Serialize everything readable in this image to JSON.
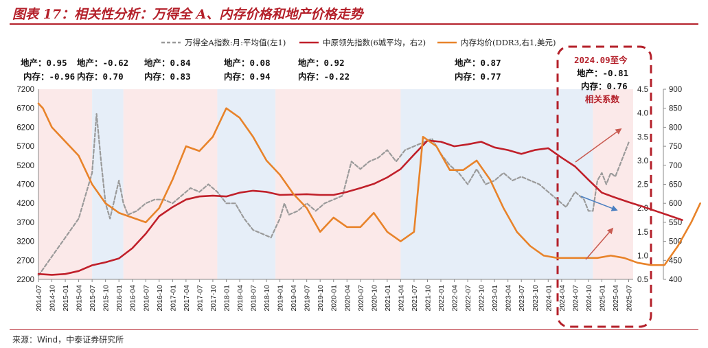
{
  "header": {
    "title": "图表 17：相关性分析：万得全 A、内存价格和地产价格走势",
    "source": "来源：Wind，中泰证券研究所"
  },
  "colors": {
    "accent": "#b4202a",
    "series_wind": "#9a9a9a",
    "series_house": "#c0202a",
    "series_ddr": "#e8832a",
    "shade_pink": "#fbe9e9",
    "shade_blue": "#e6eef8"
  },
  "stats": [
    {
      "house": "地产：0.95",
      "mem": "内存：-0.96"
    },
    {
      "house": "地产：-0.62",
      "mem": "内存：0.70"
    },
    {
      "house": "地产：0.84",
      "mem": "内存：0.83"
    },
    {
      "house": "地产：0.08",
      "mem": "内存：0.94"
    },
    {
      "house": "地产：0.92",
      "mem": "内存：-0.22"
    },
    {
      "house": "地产：0.87",
      "mem": "内存：0.77"
    }
  ],
  "highlight": {
    "period": "2024.09至今",
    "house": "地产：-0.81",
    "mem": "内存：0.76",
    "label": "相关系数"
  },
  "chart_data": {
    "type": "line",
    "x_start": "2014-07",
    "x_labels": [
      "2014-07",
      "2014-10",
      "2015-01",
      "2015-04",
      "2015-07",
      "2015-10",
      "2016-01",
      "2016-04",
      "2016-07",
      "2016-10",
      "2017-01",
      "2017-04",
      "2017-07",
      "2017-10",
      "2018-01",
      "2018-04",
      "2018-07",
      "2018-10",
      "2019-01",
      "2019-04",
      "2019-07",
      "2019-10",
      "2020-01",
      "2020-04",
      "2020-07",
      "2020-10",
      "2021-01",
      "2021-04",
      "2021-07",
      "2021-10",
      "2022-01",
      "2022-04",
      "2022-07",
      "2022-10",
      "2023-01",
      "2023-04",
      "2023-07",
      "2023-10",
      "2024-01",
      "2024-04",
      "2024-07",
      "2024-10",
      "2025-01",
      "2025-04",
      "2025-07"
    ],
    "y_left": {
      "min": 2200,
      "max": 7200,
      "ticks": [
        2200,
        2700,
        3200,
        3700,
        4200,
        4700,
        5200,
        5700,
        6200,
        6700,
        7200
      ]
    },
    "y_right1": {
      "min": 0.5,
      "max": 4.5,
      "ticks": [
        0.5,
        1.0,
        1.5,
        2.0,
        2.5,
        3.0,
        3.5,
        4.0,
        4.5
      ]
    },
    "y_right2": {
      "min": 400,
      "max": 900,
      "ticks": [
        400,
        450,
        500,
        550,
        600,
        650,
        700,
        750,
        800,
        850,
        900
      ]
    },
    "shaded_periods": [
      {
        "start": 0,
        "end": 12,
        "kind": "pink"
      },
      {
        "start": 12,
        "end": 19,
        "kind": "blue"
      },
      {
        "start": 19,
        "end": 40,
        "kind": "pink"
      },
      {
        "start": 40,
        "end": 53,
        "kind": "blue"
      },
      {
        "start": 53,
        "end": 81,
        "kind": "pink"
      },
      {
        "start": 81,
        "end": 124,
        "kind": "blue"
      },
      {
        "start": 124,
        "end": 133,
        "kind": "pink"
      }
    ],
    "series": [
      {
        "name": "万得全A指数:月:平均值(左1)",
        "axis": "left",
        "color": "#9a9a9a",
        "dash": true,
        "points": [
          [
            0,
            2300
          ],
          [
            3,
            2800
          ],
          [
            6,
            3300
          ],
          [
            9,
            3800
          ],
          [
            12,
            5000
          ],
          [
            13,
            6550
          ],
          [
            14,
            5300
          ],
          [
            15,
            4200
          ],
          [
            16,
            3800
          ],
          [
            17,
            4300
          ],
          [
            18,
            4800
          ],
          [
            19,
            4200
          ],
          [
            20,
            3900
          ],
          [
            22,
            4000
          ],
          [
            24,
            4200
          ],
          [
            26,
            4300
          ],
          [
            28,
            4300
          ],
          [
            30,
            4200
          ],
          [
            32,
            4400
          ],
          [
            34,
            4600
          ],
          [
            36,
            4500
          ],
          [
            38,
            4700
          ],
          [
            40,
            4500
          ],
          [
            42,
            4200
          ],
          [
            44,
            4200
          ],
          [
            46,
            3800
          ],
          [
            48,
            3500
          ],
          [
            50,
            3400
          ],
          [
            52,
            3300
          ],
          [
            54,
            3800
          ],
          [
            55,
            4200
          ],
          [
            56,
            3900
          ],
          [
            58,
            4000
          ],
          [
            60,
            4200
          ],
          [
            62,
            4000
          ],
          [
            64,
            4200
          ],
          [
            66,
            4300
          ],
          [
            68,
            4400
          ],
          [
            70,
            5300
          ],
          [
            72,
            5100
          ],
          [
            74,
            5300
          ],
          [
            76,
            5400
          ],
          [
            78,
            5600
          ],
          [
            80,
            5300
          ],
          [
            82,
            5600
          ],
          [
            84,
            5700
          ],
          [
            86,
            5800
          ],
          [
            88,
            5900
          ],
          [
            90,
            5500
          ],
          [
            92,
            5200
          ],
          [
            94,
            5000
          ],
          [
            96,
            4700
          ],
          [
            98,
            5100
          ],
          [
            100,
            4700
          ],
          [
            102,
            4800
          ],
          [
            104,
            5000
          ],
          [
            106,
            4800
          ],
          [
            108,
            4900
          ],
          [
            110,
            4800
          ],
          [
            112,
            4700
          ],
          [
            114,
            4500
          ],
          [
            116,
            4300
          ],
          [
            118,
            4100
          ],
          [
            120,
            4500
          ],
          [
            122,
            4300
          ],
          [
            123,
            4000
          ],
          [
            124,
            4000
          ],
          [
            125,
            4800
          ],
          [
            126,
            5000
          ],
          [
            127,
            4700
          ],
          [
            128,
            5000
          ],
          [
            129,
            4900
          ],
          [
            130,
            5200
          ],
          [
            131,
            5500
          ],
          [
            132,
            5800
          ]
        ]
      },
      {
        "name": "中原领先指数(6城平均，右2)",
        "axis": "right2",
        "color": "#c0202a",
        "dash": false,
        "points": [
          [
            0,
            414
          ],
          [
            3,
            412
          ],
          [
            6,
            414
          ],
          [
            9,
            422
          ],
          [
            12,
            437
          ],
          [
            15,
            445
          ],
          [
            18,
            455
          ],
          [
            21,
            482
          ],
          [
            24,
            520
          ],
          [
            27,
            566
          ],
          [
            30,
            590
          ],
          [
            33,
            610
          ],
          [
            36,
            618
          ],
          [
            39,
            620
          ],
          [
            42,
            618
          ],
          [
            45,
            628
          ],
          [
            48,
            633
          ],
          [
            51,
            630
          ],
          [
            54,
            622
          ],
          [
            57,
            623
          ],
          [
            60,
            624
          ],
          [
            63,
            622
          ],
          [
            66,
            622
          ],
          [
            69,
            630
          ],
          [
            72,
            640
          ],
          [
            75,
            651
          ],
          [
            78,
            668
          ],
          [
            81,
            690
          ],
          [
            84,
            728
          ],
          [
            87,
            765
          ],
          [
            90,
            762
          ],
          [
            93,
            750
          ],
          [
            96,
            755
          ],
          [
            99,
            762
          ],
          [
            102,
            747
          ],
          [
            105,
            740
          ],
          [
            108,
            730
          ],
          [
            111,
            740
          ],
          [
            114,
            745
          ],
          [
            117,
            720
          ],
          [
            120,
            697
          ],
          [
            123,
            662
          ],
          [
            126,
            628
          ],
          [
            129,
            615
          ],
          [
            132,
            603
          ],
          [
            135,
            592
          ],
          [
            138,
            580
          ],
          [
            141,
            568
          ],
          [
            144,
            556
          ]
        ]
      },
      {
        "name": "内存均价(DDR3,右1,美元)",
        "axis": "right1",
        "color": "#e8832a",
        "dash": false,
        "points": [
          [
            0,
            4.2
          ],
          [
            1,
            4.1
          ],
          [
            3,
            3.7
          ],
          [
            6,
            3.4
          ],
          [
            9,
            3.1
          ],
          [
            12,
            2.5
          ],
          [
            15,
            2.1
          ],
          [
            18,
            1.9
          ],
          [
            21,
            1.8
          ],
          [
            24,
            1.7
          ],
          [
            27,
            2.0
          ],
          [
            30,
            2.6
          ],
          [
            33,
            3.3
          ],
          [
            36,
            3.2
          ],
          [
            39,
            3.5
          ],
          [
            42,
            4.1
          ],
          [
            45,
            3.9
          ],
          [
            48,
            3.5
          ],
          [
            51,
            3.0
          ],
          [
            54,
            2.7
          ],
          [
            57,
            2.3
          ],
          [
            60,
            2.0
          ],
          [
            63,
            1.5
          ],
          [
            66,
            1.8
          ],
          [
            69,
            1.6
          ],
          [
            72,
            1.6
          ],
          [
            75,
            1.9
          ],
          [
            78,
            1.5
          ],
          [
            81,
            1.3
          ],
          [
            84,
            1.5
          ],
          [
            86,
            3.5
          ],
          [
            89,
            3.3
          ],
          [
            92,
            2.8
          ],
          [
            95,
            2.8
          ],
          [
            98,
            3.0
          ],
          [
            101,
            2.6
          ],
          [
            104,
            2.0
          ],
          [
            107,
            1.5
          ],
          [
            110,
            1.2
          ],
          [
            113,
            1.0
          ],
          [
            116,
            0.95
          ],
          [
            119,
            0.95
          ],
          [
            122,
            0.95
          ],
          [
            125,
            0.95
          ],
          [
            128,
            1.0
          ],
          [
            131,
            0.95
          ],
          [
            134,
            0.85
          ],
          [
            137,
            0.8
          ],
          [
            140,
            0.8
          ],
          [
            143,
            1.2
          ],
          [
            146,
            1.7
          ],
          [
            148,
            2.1
          ]
        ]
      }
    ],
    "legend_position": "top",
    "grid": false
  }
}
